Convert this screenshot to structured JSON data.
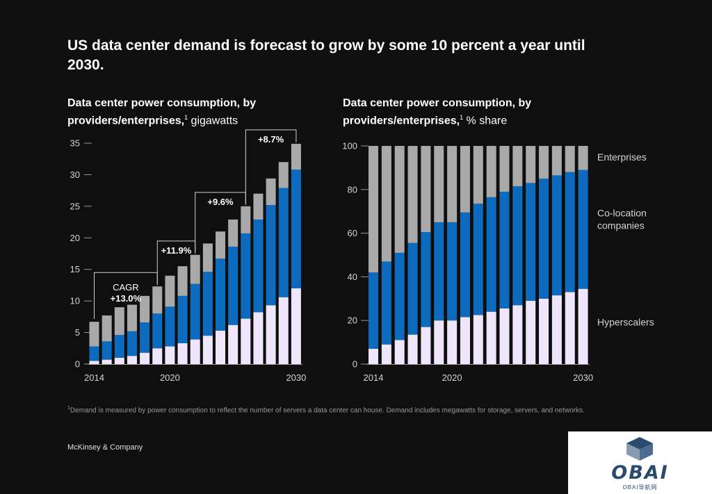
{
  "headline": "US data center demand is forecast to grow by some 10 percent a year until 2030.",
  "chart1": {
    "title_bold": "Data center power consumption, by providers/enterprises,",
    "title_sup": "1",
    "title_unit": " gigawatts"
  },
  "chart2": {
    "title_bold": "Data center power consumption, by providers/enterprises,",
    "title_sup": "1",
    "title_unit": " % share"
  },
  "footnote": {
    "sup": "1",
    "text": "Demand is measured by power consumption to reflect the number of servers a data center can house. Demand includes megawatts for storage, servers, and networks."
  },
  "source": "McKinsey & Company",
  "watermark": {
    "name": "OBAI",
    "sub": "OBAI导航网"
  },
  "colors": {
    "hyperscalers": "#efe6fb",
    "colocation": "#0d6bbf",
    "enterprises": "#a9a9a9",
    "axis": "#9a9a9a",
    "background": "#0f0f0f"
  },
  "chart_data": [
    {
      "type": "bar",
      "stacked": true,
      "title": "Data center power consumption, by providers/enterprises, gigawatts",
      "xlabel": "",
      "ylabel": "",
      "ylim": [
        0,
        35
      ],
      "yticks": [
        0,
        5,
        10,
        15,
        20,
        25,
        30,
        35
      ],
      "x": [
        2014,
        2015,
        2016,
        2017,
        2018,
        2019,
        2020,
        2021,
        2022,
        2023,
        2024,
        2025,
        2026,
        2027,
        2028,
        2029,
        2030
      ],
      "xtick_labels": [
        "2014",
        "2020",
        "2030"
      ],
      "series": [
        {
          "name": "Hyperscalers",
          "values": [
            0.5,
            0.7,
            1.0,
            1.3,
            1.8,
            2.5,
            2.8,
            3.3,
            3.9,
            4.5,
            5.3,
            6.2,
            7.2,
            8.2,
            9.3,
            10.6,
            12.0
          ]
        },
        {
          "name": "Co-location companies",
          "values": [
            2.3,
            2.9,
            3.6,
            3.9,
            4.8,
            5.5,
            6.3,
            7.5,
            8.8,
            10.1,
            11.4,
            12.4,
            13.5,
            14.7,
            15.9,
            17.3,
            18.8
          ]
        },
        {
          "name": "Enterprises",
          "values": [
            3.9,
            4.1,
            4.4,
            4.2,
            4.2,
            4.3,
            4.9,
            4.7,
            4.6,
            4.5,
            4.3,
            4.3,
            4.3,
            4.1,
            4.2,
            4.1,
            4.1
          ]
        }
      ],
      "annotations": [
        {
          "label": "CAGR",
          "value": "+13.0%",
          "from": 2014,
          "to": 2019
        },
        {
          "label": "",
          "value": "+11.9%",
          "from": 2019,
          "to": 2022
        },
        {
          "label": "",
          "value": "+9.6%",
          "from": 2022,
          "to": 2026
        },
        {
          "label": "",
          "value": "+8.7%",
          "from": 2026,
          "to": 2030
        }
      ]
    },
    {
      "type": "bar",
      "stacked": true,
      "title": "Data center power consumption, by providers/enterprises, % share",
      "xlabel": "",
      "ylabel": "",
      "ylim": [
        0,
        100
      ],
      "yticks": [
        0,
        20,
        40,
        60,
        80,
        100
      ],
      "x": [
        2014,
        2015,
        2016,
        2017,
        2018,
        2019,
        2020,
        2021,
        2022,
        2023,
        2024,
        2025,
        2026,
        2027,
        2028,
        2029,
        2030
      ],
      "xtick_labels": [
        "2014",
        "2020",
        "2030"
      ],
      "legend": [
        "Enterprises",
        "Co-location companies",
        "Hyperscalers"
      ],
      "series": [
        {
          "name": "Hyperscalers",
          "values": [
            7,
            9,
            11,
            13.5,
            17,
            20,
            20,
            21.5,
            22.5,
            24,
            25.5,
            27,
            29,
            30,
            31.5,
            33,
            34.5
          ]
        },
        {
          "name": "Co-location companies",
          "values": [
            35,
            38,
            40,
            42,
            43.5,
            45,
            45,
            48,
            51,
            52.5,
            53.5,
            54.5,
            54,
            55,
            55,
            55,
            54.5
          ]
        },
        {
          "name": "Enterprises",
          "values": [
            58,
            53,
            49,
            44.5,
            39.5,
            35,
            35,
            30.5,
            26.5,
            23.5,
            21,
            18.5,
            17,
            15,
            13.5,
            12,
            11
          ]
        }
      ]
    }
  ]
}
